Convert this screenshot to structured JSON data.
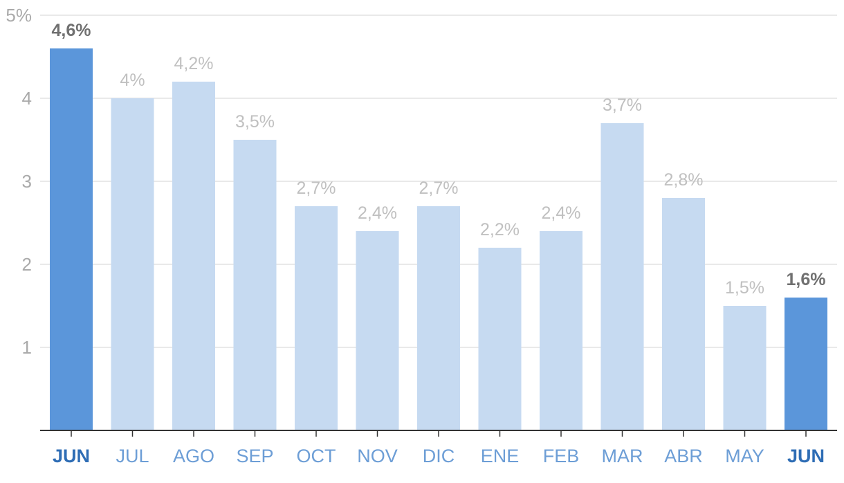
{
  "chart_data": {
    "type": "bar",
    "categories": [
      "JUN",
      "JUL",
      "AGO",
      "SEP",
      "OCT",
      "NOV",
      "DIC",
      "ENE",
      "FEB",
      "MAR",
      "ABR",
      "MAY",
      "JUN"
    ],
    "values": [
      4.6,
      4.0,
      4.2,
      3.5,
      2.7,
      2.4,
      2.7,
      2.2,
      2.4,
      3.7,
      2.8,
      1.5,
      1.6
    ],
    "value_labels": [
      "4,6%",
      "4%",
      "4,2%",
      "3,5%",
      "2,7%",
      "2,4%",
      "2,7%",
      "2,2%",
      "2,4%",
      "3,7%",
      "2,8%",
      "1,5%",
      "1,6%"
    ],
    "highlighted": [
      true,
      false,
      false,
      false,
      false,
      false,
      false,
      false,
      false,
      false,
      false,
      false,
      true
    ],
    "yticks": [
      1,
      2,
      3,
      4,
      5
    ],
    "ytick_labels": [
      "1",
      "2",
      "3",
      "4",
      "5%"
    ],
    "ylim": [
      0,
      5
    ],
    "grid": true,
    "title": "",
    "xlabel": "",
    "ylabel": ""
  },
  "colors": {
    "highlight_bar": "#5b96da",
    "bar": "#c6daf1",
    "highlight_value_label": "#707070",
    "value_label": "#c0c0c0",
    "highlight_category": "#2e6db5",
    "category": "#6d9ed6",
    "gridline": "#e2e2e2",
    "baseline": "#333333",
    "tick_label": "#aaaaaa"
  }
}
